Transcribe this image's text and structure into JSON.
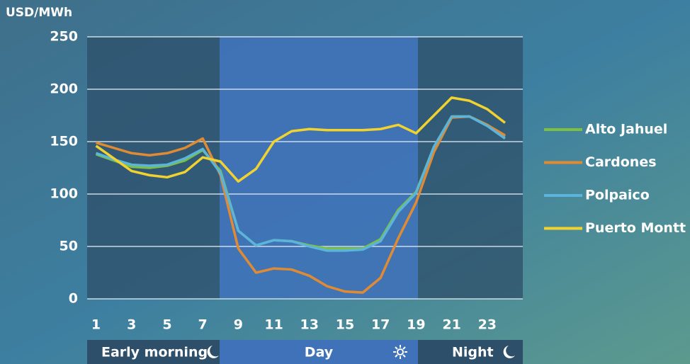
{
  "chart_data": {
    "type": "line",
    "y_label": "USD/MWh",
    "x": [
      1,
      2,
      3,
      4,
      5,
      6,
      7,
      8,
      9,
      10,
      11,
      12,
      13,
      14,
      15,
      16,
      17,
      18,
      19,
      20,
      21,
      22,
      23,
      24
    ],
    "series": [
      {
        "name": "Alto Jahuel",
        "color": "#7cc043",
        "values": [
          138,
          132,
          126,
          125,
          127,
          132,
          142,
          122,
          65,
          51,
          56,
          55,
          51,
          48,
          48,
          48,
          57,
          85,
          102,
          145,
          174,
          174,
          166,
          155
        ]
      },
      {
        "name": "Cardones",
        "color": "#e08a34",
        "values": [
          149,
          144,
          139,
          137,
          139,
          144,
          153,
          118,
          48,
          25,
          29,
          28,
          22,
          12,
          7,
          6,
          20,
          58,
          92,
          140,
          173,
          174,
          166,
          156
        ]
      },
      {
        "name": "Polpaico",
        "color": "#5ab4dc",
        "values": [
          139,
          133,
          128,
          127,
          128,
          134,
          143,
          120,
          65,
          51,
          56,
          55,
          50,
          46,
          46,
          47,
          55,
          83,
          101,
          145,
          174,
          174,
          165,
          153
        ]
      },
      {
        "name": "Puerto Montt",
        "color": "#f2d22e",
        "values": [
          146,
          134,
          122,
          118,
          116,
          121,
          135,
          131,
          112,
          124,
          150,
          160,
          162,
          161,
          161,
          161,
          162,
          166,
          158,
          175,
          192,
          189,
          181,
          168
        ]
      }
    ],
    "xlim": [
      0.5,
      25
    ],
    "xticks": [
      1,
      3,
      5,
      7,
      9,
      11,
      13,
      15,
      17,
      19,
      21,
      23
    ],
    "ylim": [
      0,
      250
    ],
    "yticks": [
      0,
      50,
      100,
      150,
      200,
      250
    ],
    "grid": true,
    "periods": [
      "Early morning",
      "Day",
      "Night"
    ]
  }
}
